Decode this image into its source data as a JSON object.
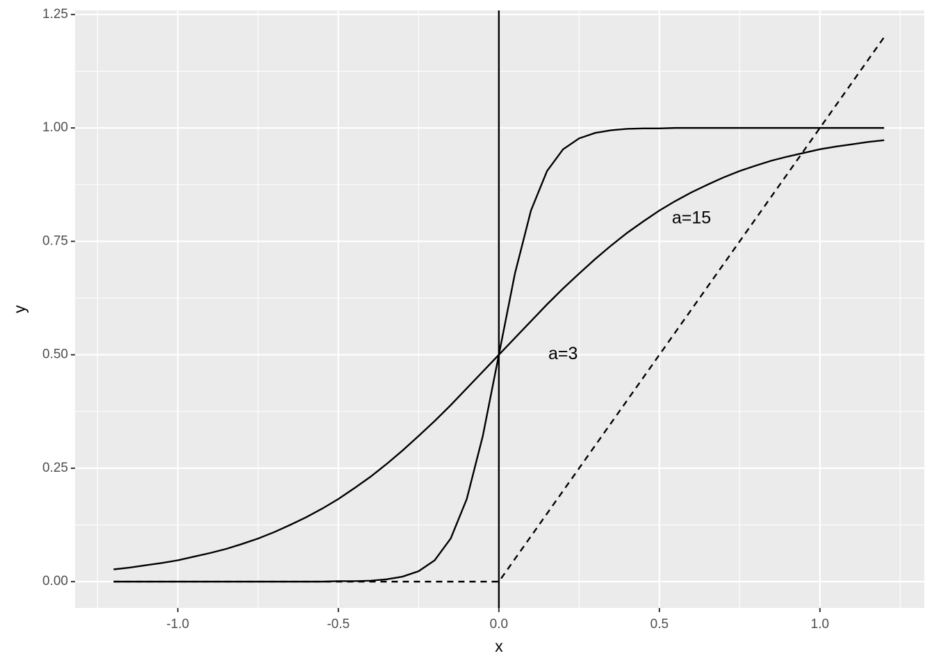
{
  "chart_data": {
    "type": "line",
    "x_label": "x",
    "y_label": "y",
    "x": [
      -1.2,
      -1.15,
      -1.1,
      -1.05,
      -1.0,
      -0.95,
      -0.9,
      -0.85,
      -0.8,
      -0.75,
      -0.7,
      -0.65,
      -0.6,
      -0.55,
      -0.5,
      -0.45,
      -0.4,
      -0.35,
      -0.3,
      -0.25,
      -0.2,
      -0.15,
      -0.1,
      -0.05,
      0,
      0.05,
      0.1,
      0.15,
      0.2,
      0.25,
      0.3,
      0.35,
      0.4,
      0.45,
      0.5,
      0.55,
      0.6,
      0.65,
      0.7,
      0.75,
      0.8,
      0.85,
      0.9,
      0.95,
      1.0,
      1.05,
      1.1,
      1.15,
      1.2
    ],
    "series": [
      {
        "color": "#000000",
        "linetype": "solid",
        "values": [
          0.027,
          0.031,
          0.036,
          0.041,
          0.047,
          0.055,
          0.063,
          0.072,
          0.083,
          0.095,
          0.109,
          0.125,
          0.142,
          0.161,
          0.182,
          0.206,
          0.231,
          0.259,
          0.289,
          0.321,
          0.354,
          0.389,
          0.426,
          0.463,
          0.5,
          0.537,
          0.574,
          0.611,
          0.646,
          0.679,
          0.711,
          0.741,
          0.769,
          0.794,
          0.818,
          0.839,
          0.858,
          0.875,
          0.891,
          0.905,
          0.917,
          0.928,
          0.937,
          0.945,
          0.953,
          0.959,
          0.964,
          0.969,
          0.973
        ]
      },
      {
        "color": "#000000",
        "linetype": "solid",
        "values": [
          0,
          0,
          0,
          0,
          0,
          0,
          0,
          0,
          0,
          0,
          0,
          0,
          0,
          0,
          0.001,
          0.001,
          0.002,
          0.005,
          0.011,
          0.023,
          0.047,
          0.095,
          0.182,
          0.321,
          0.5,
          0.679,
          0.818,
          0.905,
          0.953,
          0.977,
          0.989,
          0.995,
          0.998,
          0.999,
          0.999,
          1,
          1,
          1,
          1,
          1,
          1,
          1,
          1,
          1,
          1,
          1,
          1,
          1,
          1
        ]
      },
      {
        "color": "#000000",
        "linetype": "dashed",
        "values": [
          0,
          0,
          0,
          0,
          0,
          0,
          0,
          0,
          0,
          0,
          0,
          0,
          0,
          0,
          0,
          0,
          0,
          0,
          0,
          0,
          0,
          0,
          0,
          0,
          0,
          0.05,
          0.1,
          0.15,
          0.2,
          0.25,
          0.3,
          0.35,
          0.4,
          0.45,
          0.5,
          0.55,
          0.6,
          0.65,
          0.7,
          0.75,
          0.8,
          0.85,
          0.9,
          0.95,
          1.0,
          1.05,
          1.1,
          1.15,
          1.2
        ]
      }
    ],
    "vline": 0,
    "annotations": [
      {
        "text": "a=15",
        "x": 0.6,
        "y": 0.8
      },
      {
        "text": "a=3",
        "x": 0.2,
        "y": 0.5
      }
    ],
    "xlim": [
      -1.32,
      1.325
    ],
    "ylim": [
      -0.058,
      1.259
    ],
    "xticks": [
      {
        "value": -1,
        "label": "-1.0"
      },
      -0.5,
      {
        "value": 0,
        "label": "0.0"
      },
      0.5,
      {
        "value": 1,
        "label": "1.0"
      }
    ],
    "yticks": [
      {
        "value": 0,
        "label": "0.00"
      },
      {
        "value": 0.25,
        "label": "0.25"
      },
      {
        "value": 0.5,
        "label": "0.50"
      },
      {
        "value": 0.75,
        "label": "0.75"
      },
      {
        "value": 1,
        "label": "1.00"
      },
      {
        "value": 1.25,
        "label": "1.25"
      }
    ],
    "grid": true,
    "panel_color": "#ebebeb"
  }
}
